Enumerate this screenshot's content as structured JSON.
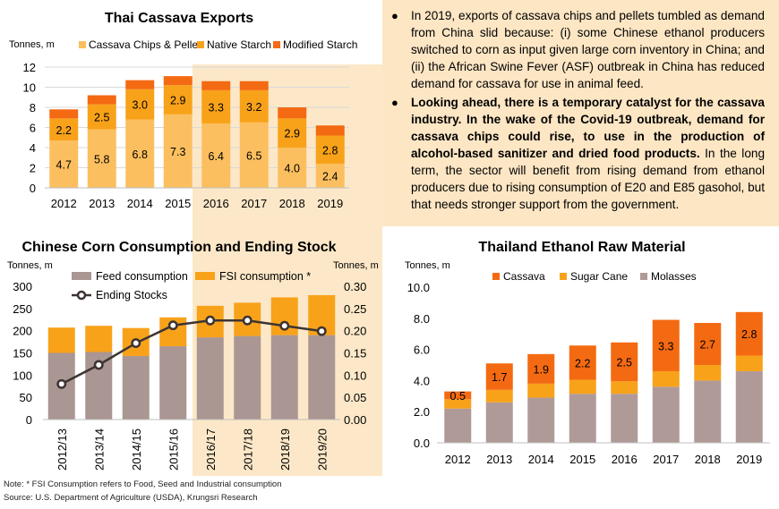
{
  "text_panel": {
    "bullet1": "In 2019, exports of cassava chips and pellets tumbled as demand from China slid because: (i) some Chinese ethanol producers switched to corn as input given large corn inventory in China; and (ii) the African Swine Fever (ASF) outbreak in China has reduced demand for cassava for use in animal feed.",
    "bullet2_bold": "Looking ahead, there is a temporary catalyst for the cassava industry. In the wake of the Covid-19 outbreak, demand for cassava chips could rise, to use in the production of alcohol-based sanitizer and dried food products.",
    "bullet2_rest": " In the long term, the sector will benefit from rising demand from ethanol producers due to rising consumption of E20 and E85 gasohol, but that needs stronger support from the government."
  },
  "footer": {
    "note": "Note: * FSI Consumption refers to Food, Seed and Industrial consumption",
    "source": "Source: U.S. Department of Agriculture (USDA), Krungsri Research"
  },
  "colors": {
    "chips": "#fbbf5f",
    "native": "#f8a21a",
    "modified": "#f46a12",
    "feed": "#aa9692",
    "fsi": "#f8a21a",
    "line": "#3d3431",
    "cassava": "#f46a12",
    "sugarcane": "#f8a21a",
    "molasses": "#b09a98",
    "highlight": "#fce8c8"
  },
  "chart_data": [
    {
      "type": "bar",
      "stacked": true,
      "title": "Thai Cassava Exports",
      "unit_label": "Tonnes, m",
      "categories": [
        "2012",
        "2013",
        "2014",
        "2015",
        "2016",
        "2017",
        "2018",
        "2019"
      ],
      "series": [
        {
          "name": "Cassava Chips & Pellet",
          "values": [
            4.7,
            5.8,
            6.8,
            7.3,
            6.4,
            6.5,
            4.0,
            2.4
          ]
        },
        {
          "name": "Native Starch",
          "values": [
            2.2,
            2.5,
            3.0,
            2.9,
            3.3,
            3.2,
            2.9,
            2.8
          ]
        },
        {
          "name": "Modified Starch",
          "values": [
            0.9,
            0.9,
            0.9,
            0.9,
            0.9,
            0.9,
            1.1,
            1.0
          ]
        }
      ],
      "data_labels": [
        [
          "4.7",
          "5.8",
          "6.8",
          "7.3",
          "6.4",
          "6.5",
          "4.0",
          "2.4"
        ],
        [
          "2.2",
          "2.5",
          "3.0",
          "2.9",
          "3.3",
          "3.2",
          "2.9",
          "2.8"
        ]
      ],
      "ylim": [
        0,
        12
      ],
      "yticks": [
        "0",
        "2",
        "4",
        "6",
        "8",
        "10",
        "12"
      ],
      "grid": true,
      "legend": "top",
      "highlight_from_index": 4
    },
    {
      "type": "bar",
      "stacked": true,
      "title": "Chinese Corn Consumption and Ending Stock",
      "unit_label_left": "Tonnes, m",
      "unit_label_right": "Tonnes, m",
      "categories": [
        "2012/13",
        "2013/14",
        "2014/15",
        "2015/16",
        "2016/17",
        "2017/18",
        "2018/19",
        "2019/20"
      ],
      "series": [
        {
          "name": "Feed consumption",
          "values": [
            150,
            152,
            143,
            165,
            185,
            188,
            190,
            190
          ]
        },
        {
          "name": "FSI consumption *",
          "values": [
            57,
            59,
            63,
            65,
            71,
            75,
            85,
            90
          ]
        }
      ],
      "line_series": {
        "name": "Ending Stocks",
        "values": [
          0.08,
          0.123,
          0.172,
          0.212,
          0.223,
          0.223,
          0.211,
          0.199
        ]
      },
      "ylim": [
        0,
        300
      ],
      "yticks": [
        "0",
        "50",
        "100",
        "150",
        "200",
        "250",
        "300"
      ],
      "y2lim": [
        0,
        0.3
      ],
      "y2ticks": [
        "0.00",
        "0.05",
        "0.10",
        "0.15",
        "0.20",
        "0.25",
        "0.30"
      ],
      "grid": false,
      "legend": "top-left",
      "highlight_from_index": 4
    },
    {
      "type": "bar",
      "stacked": true,
      "title": "Thailand Ethanol Raw Material",
      "unit_label": "Tonnes, m",
      "categories": [
        "2012",
        "2013",
        "2014",
        "2015",
        "2016",
        "2017",
        "2018",
        "2019"
      ],
      "series": [
        {
          "name": "Molasses",
          "values": [
            2.2,
            2.6,
            2.9,
            3.15,
            3.15,
            3.6,
            4.0,
            4.6
          ]
        },
        {
          "name": "Sugar Cane",
          "values": [
            0.6,
            0.8,
            0.9,
            0.9,
            0.8,
            1.0,
            1.0,
            1.0
          ]
        },
        {
          "name": "Cassava",
          "values": [
            0.5,
            1.7,
            1.9,
            2.2,
            2.5,
            3.3,
            2.7,
            2.8
          ]
        }
      ],
      "data_labels": [
        "0.5",
        "1.7",
        "1.9",
        "2.2",
        "2.5",
        "3.3",
        "2.7",
        "2.8"
      ],
      "ylim": [
        0,
        10
      ],
      "yticks": [
        "0.0",
        "2.0",
        "4.0",
        "6.0",
        "8.0",
        "10.0"
      ],
      "grid": false,
      "legend": "top"
    }
  ]
}
